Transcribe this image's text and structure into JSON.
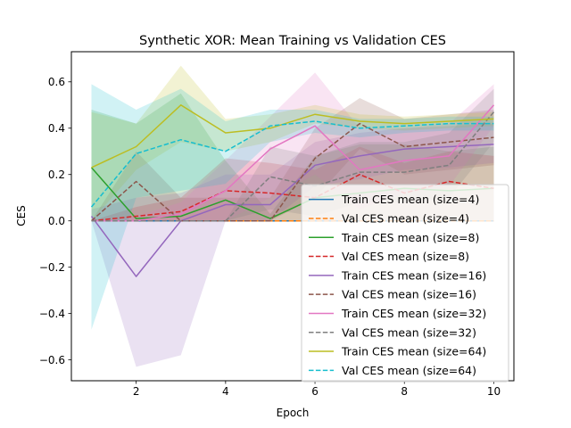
{
  "chart_data": {
    "type": "line",
    "title": "Synthetic XOR: Mean Training vs Validation CES",
    "xlabel": "Epoch",
    "ylabel": "CES",
    "xlim": [
      0.55,
      10.45
    ],
    "ylim": [
      -0.69,
      0.73
    ],
    "xticks": [
      2,
      4,
      6,
      8,
      10
    ],
    "yticks": [
      -0.6,
      -0.4,
      -0.2,
      0.0,
      0.2,
      0.4,
      0.6
    ],
    "ytick_labels": [
      "−0.6",
      "−0.4",
      "−0.2",
      "0.0",
      "0.2",
      "0.4",
      "0.6"
    ],
    "grid": false,
    "legend_position": "lower-right",
    "x": [
      1,
      2,
      3,
      4,
      5,
      6,
      7,
      8,
      9,
      10
    ],
    "series": [
      {
        "name": "Train CES mean (size=4)",
        "color": "#1f77b4",
        "dash": false,
        "values": [
          0.0,
          0.0,
          0.0,
          0.0,
          0.0,
          0.0,
          0.0,
          0.0,
          0.0,
          0.0
        ],
        "lower": [
          0.0,
          0.0,
          0.0,
          0.0,
          0.0,
          0.0,
          0.0,
          0.0,
          0.0,
          0.0
        ],
        "upper": [
          0.0,
          0.0,
          0.0,
          0.0,
          0.0,
          0.0,
          0.0,
          0.0,
          0.0,
          0.0
        ]
      },
      {
        "name": "Val CES mean (size=4)",
        "color": "#ff7f0e",
        "dash": true,
        "values": [
          0.0,
          0.0,
          0.0,
          0.0,
          0.0,
          0.0,
          0.0,
          0.0,
          0.0,
          0.0
        ],
        "lower": [
          0.0,
          0.0,
          0.0,
          0.0,
          0.0,
          0.0,
          0.0,
          0.0,
          0.0,
          0.0
        ],
        "upper": [
          0.0,
          0.0,
          0.0,
          0.0,
          0.0,
          0.0,
          0.0,
          0.0,
          0.0,
          0.0
        ]
      },
      {
        "name": "Train CES mean (size=8)",
        "color": "#2ca02c",
        "dash": false,
        "values": [
          0.23,
          0.01,
          0.02,
          0.09,
          0.01,
          0.1,
          0.12,
          0.14,
          0.13,
          0.14
        ],
        "lower": [
          0.0,
          0.0,
          0.0,
          0.0,
          0.0,
          0.0,
          0.0,
          0.0,
          0.0,
          0.0
        ],
        "upper": [
          0.48,
          0.42,
          0.55,
          0.26,
          0.03,
          0.28,
          0.33,
          0.33,
          0.3,
          0.32
        ]
      },
      {
        "name": "Val CES mean (size=8)",
        "color": "#d62728",
        "dash": true,
        "values": [
          0.0,
          0.02,
          0.04,
          0.13,
          0.12,
          0.1,
          0.2,
          0.12,
          0.17,
          0.14
        ],
        "lower": [
          0.0,
          0.0,
          0.0,
          0.0,
          0.0,
          0.0,
          0.0,
          0.0,
          0.0,
          0.0
        ],
        "upper": [
          0.0,
          0.06,
          0.1,
          0.27,
          0.25,
          0.22,
          0.32,
          0.25,
          0.3,
          0.28
        ]
      },
      {
        "name": "Train CES mean (size=16)",
        "color": "#9467bd",
        "dash": false,
        "values": [
          0.02,
          -0.24,
          0.0,
          0.07,
          0.07,
          0.24,
          0.28,
          0.31,
          0.32,
          0.33
        ],
        "lower": [
          0.0,
          -0.63,
          -0.58,
          0.0,
          0.0,
          0.15,
          0.18,
          0.22,
          0.23,
          0.25
        ],
        "upper": [
          0.05,
          0.1,
          0.12,
          0.2,
          0.2,
          0.34,
          0.38,
          0.4,
          0.41,
          0.42
        ]
      },
      {
        "name": "Val CES mean (size=16)",
        "color": "#8c564b",
        "dash": true,
        "values": [
          0.0,
          0.17,
          0.0,
          0.0,
          0.0,
          0.27,
          0.42,
          0.32,
          0.34,
          0.36
        ],
        "lower": [
          0.0,
          0.0,
          0.0,
          0.0,
          0.0,
          0.1,
          0.31,
          0.2,
          0.22,
          0.24
        ],
        "upper": [
          0.0,
          0.3,
          0.1,
          0.1,
          0.1,
          0.4,
          0.53,
          0.44,
          0.46,
          0.48
        ]
      },
      {
        "name": "Train CES mean (size=32)",
        "color": "#e377c2",
        "dash": false,
        "values": [
          0.0,
          0.0,
          0.03,
          0.13,
          0.31,
          0.41,
          0.22,
          0.26,
          0.28,
          0.5
        ],
        "lower": [
          0.0,
          0.0,
          0.0,
          0.0,
          0.1,
          0.2,
          0.05,
          0.12,
          0.15,
          0.41
        ],
        "upper": [
          0.0,
          0.02,
          0.08,
          0.26,
          0.45,
          0.64,
          0.4,
          0.4,
          0.42,
          0.59
        ]
      },
      {
        "name": "Val CES mean (size=32)",
        "color": "#7f7f7f",
        "dash": true,
        "values": [
          0.0,
          0.0,
          0.0,
          0.0,
          0.19,
          0.15,
          0.21,
          0.21,
          0.24,
          0.47
        ],
        "lower": [
          0.0,
          0.0,
          0.0,
          0.0,
          0.05,
          0.02,
          0.08,
          0.08,
          0.1,
          0.34
        ],
        "upper": [
          0.0,
          0.0,
          0.0,
          0.0,
          0.32,
          0.28,
          0.34,
          0.34,
          0.38,
          0.57
        ]
      },
      {
        "name": "Train CES mean (size=64)",
        "color": "#bcbd22",
        "dash": false,
        "values": [
          0.23,
          0.32,
          0.5,
          0.38,
          0.4,
          0.46,
          0.43,
          0.42,
          0.43,
          0.44
        ],
        "lower": [
          0.0,
          0.22,
          0.34,
          0.3,
          0.34,
          0.42,
          0.4,
          0.39,
          0.4,
          0.41
        ],
        "upper": [
          0.47,
          0.42,
          0.67,
          0.44,
          0.46,
          0.5,
          0.46,
          0.45,
          0.46,
          0.47
        ]
      },
      {
        "name": "Val CES mean (size=64)",
        "color": "#17becf",
        "dash": true,
        "values": [
          0.06,
          0.29,
          0.35,
          0.3,
          0.41,
          0.43,
          0.4,
          0.41,
          0.42,
          0.42
        ],
        "lower": [
          -0.47,
          0.1,
          0.13,
          0.16,
          0.34,
          0.38,
          0.36,
          0.38,
          0.39,
          0.39
        ],
        "upper": [
          0.59,
          0.48,
          0.57,
          0.43,
          0.48,
          0.48,
          0.44,
          0.44,
          0.45,
          0.45
        ]
      }
    ]
  }
}
